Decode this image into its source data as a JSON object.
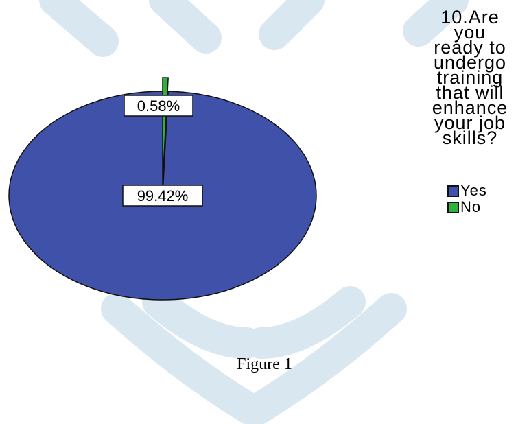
{
  "chart_data": {
    "type": "pie",
    "title": "10.Are you ready to undergo training that will enhance your job skills?",
    "title_lines": [
      "10.Are",
      "you",
      "ready to",
      "undergo",
      "training",
      "that will",
      "enhance",
      "your job",
      "skills?"
    ],
    "categories": [
      "Yes",
      "No"
    ],
    "values": [
      99.42,
      0.58
    ],
    "data_labels": [
      "99.42%",
      "0.58%"
    ],
    "colors": [
      "#3f51a8",
      "#2db33a"
    ],
    "legend": "right"
  },
  "caption": "Figure 1"
}
